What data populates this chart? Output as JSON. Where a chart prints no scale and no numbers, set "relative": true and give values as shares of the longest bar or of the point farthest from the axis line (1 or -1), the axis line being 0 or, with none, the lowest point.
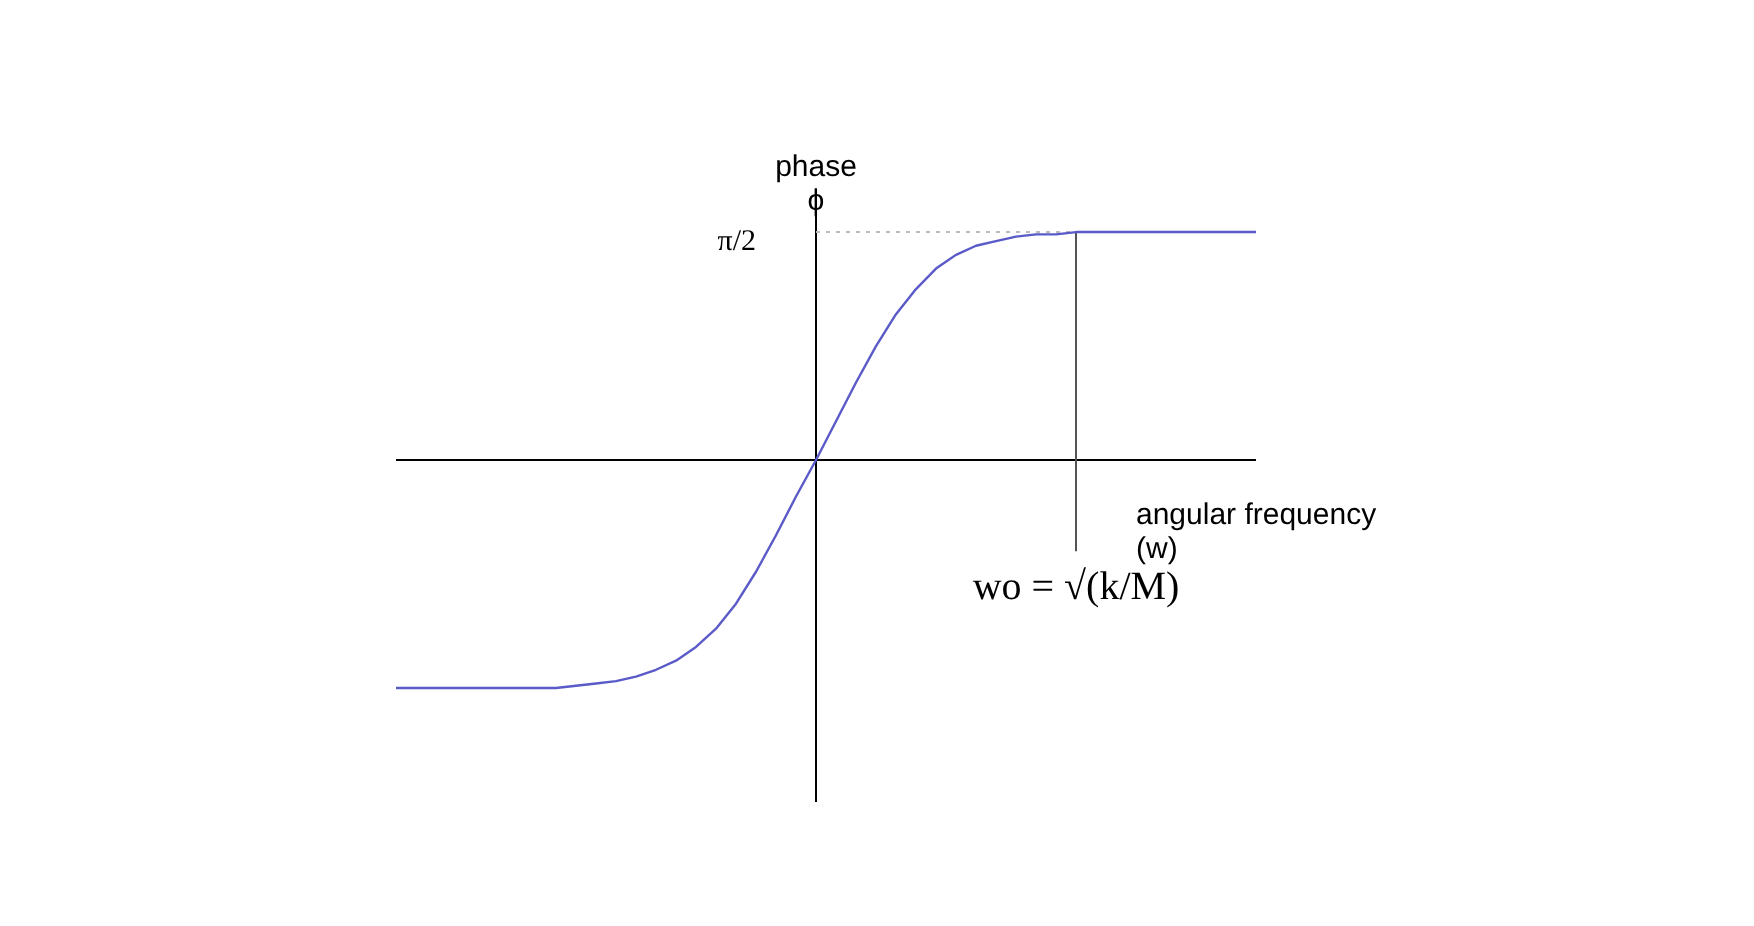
{
  "chart_data": {
    "type": "line",
    "relative": true,
    "ylabel": "phase\nϕ",
    "xlabel": "angular frequency\n(w)",
    "categories": [
      null,
      null,
      null,
      null,
      null,
      null,
      null,
      null,
      null,
      null,
      null,
      null,
      null,
      null,
      null,
      null,
      null,
      null,
      null,
      null,
      null,
      null,
      null,
      null,
      null,
      null,
      null,
      null,
      null,
      null,
      null,
      null,
      null,
      null,
      null,
      null,
      null,
      null,
      null,
      null,
      null,
      null,
      null,
      null
    ],
    "series": [
      {
        "color": "#5a5ac8",
        "values": [
          -1,
          -1,
          -1,
          -1,
          -1,
          -1,
          -1,
          -1,
          -1,
          -0.99,
          -0.98,
          -0.97,
          -0.95,
          -0.92,
          -0.88,
          -0.82,
          -0.74,
          -0.63,
          -0.49,
          -0.33,
          -0.16,
          0,
          0.17,
          0.34,
          0.5,
          0.64,
          0.75,
          0.84,
          0.9,
          0.94,
          0.96,
          0.98,
          0.99,
          0.99,
          1,
          1,
          1,
          1,
          1,
          1,
          1,
          1,
          1,
          1
        ]
      }
    ],
    "ref_lines": [
      {
        "axis": "y",
        "value": 1,
        "label": "π/2",
        "line_style": "dotted",
        "color": "#bbbbbb"
      }
    ],
    "annotations": [
      "wo = √(k/M)"
    ],
    "marker": "none",
    "line_style": "solid"
  }
}
